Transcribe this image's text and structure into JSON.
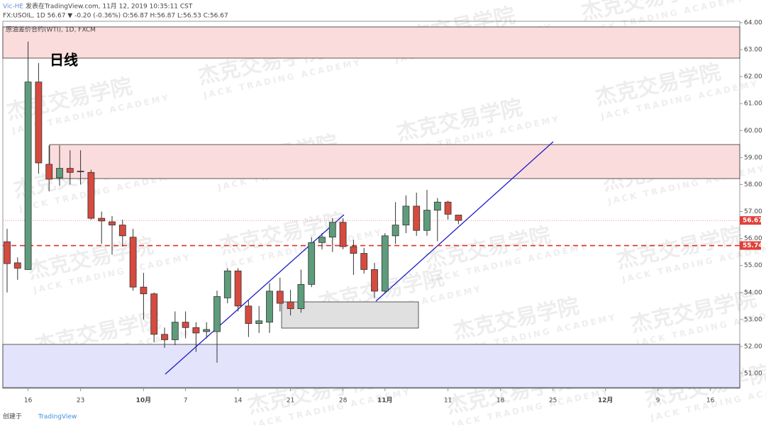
{
  "chart_data": {
    "type": "candlestick",
    "author": "Vic-HE",
    "published": "发表在TradingView.com, 11月 12, 2019 10:35:11 CST",
    "symbol_line": "FX:USOIL, 1D 56.67 ▼ -0.20 (-0.36%) O:56.87 H:56.87 L:56.53 C:56.67",
    "instrument": "原油差价合约(WTI), 1D, FXCM",
    "annotation": "日线",
    "watermark": "杰克交易学院",
    "watermark_sub": "JACK TRADING ACADEMY",
    "footer": "创建于",
    "brand": "TradingView",
    "categories": [
      null,
      null,
      "16",
      null,
      null,
      null,
      null,
      "23",
      null,
      null,
      null,
      null,
      null,
      "10月",
      null,
      null,
      null,
      "7",
      null,
      null,
      null,
      null,
      "14",
      null,
      null,
      null,
      null,
      "21",
      null,
      null,
      null,
      null,
      "28",
      null,
      null,
      null,
      "11月",
      null,
      null,
      null,
      null,
      null,
      "11",
      null,
      null,
      null,
      null,
      "18",
      null,
      null,
      null,
      null,
      "25",
      null,
      null,
      null,
      null,
      "12月",
      null,
      null,
      null,
      null,
      "9",
      null,
      null,
      null,
      null,
      "16",
      null,
      null
    ],
    "open": [
      55.88,
      55.1,
      54.85,
      61.8,
      58.75,
      58.25,
      58.6,
      58.5,
      58.45,
      56.75,
      56.62,
      56.5,
      56.05,
      54.2,
      53.95,
      52.45,
      52.25,
      52.9,
      52.7,
      52.55,
      52.55,
      53.8,
      54.8,
      53.5,
      52.85,
      52.9,
      54.05,
      53.65,
      53.4,
      54.3,
      55.85,
      56.05,
      56.6,
      55.7,
      55.45,
      54.85,
      54.05,
      56.1,
      56.5,
      57.2,
      56.3,
      57.05,
      57.35,
      56.87,
      null,
      null,
      null,
      null,
      null,
      null,
      null,
      null,
      null,
      null,
      null,
      null,
      null,
      null,
      null,
      null,
      null,
      null,
      null,
      null,
      null,
      null,
      null,
      null,
      null,
      null
    ],
    "high": [
      56.36,
      55.3,
      63.3,
      62.5,
      59.45,
      59.45,
      59.27,
      59.27,
      58.55,
      57.0,
      56.83,
      56.7,
      56.36,
      54.73,
      54.0,
      52.7,
      53.3,
      53.3,
      52.9,
      52.9,
      54.07,
      54.9,
      54.9,
      53.7,
      53.5,
      54.35,
      54.55,
      54.1,
      54.85,
      56.05,
      56.2,
      56.75,
      56.75,
      55.95,
      55.65,
      55.1,
      56.2,
      57.35,
      57.6,
      57.7,
      57.8,
      57.5,
      57.4,
      56.87,
      null,
      null,
      null,
      null,
      null,
      null,
      null,
      null,
      null,
      null,
      null,
      null,
      null,
      null,
      null,
      null,
      null,
      null,
      null,
      null,
      null,
      null,
      null,
      null,
      null,
      null
    ],
    "low": [
      54.0,
      54.47,
      54.85,
      58.4,
      57.75,
      57.95,
      58.0,
      58.0,
      56.7,
      55.8,
      55.4,
      55.7,
      54.07,
      53.0,
      52.15,
      51.95,
      52.05,
      52.3,
      51.8,
      52.3,
      51.4,
      53.6,
      53.3,
      52.35,
      52.5,
      52.5,
      53.3,
      53.15,
      53.25,
      54.2,
      55.6,
      55.5,
      55.6,
      54.65,
      54.7,
      53.8,
      54.0,
      55.8,
      56.2,
      56.1,
      56.1,
      55.9,
      56.7,
      56.53,
      null,
      null,
      null,
      null,
      null,
      null,
      null,
      null,
      null,
      null,
      null,
      null,
      null,
      null,
      null,
      null,
      null,
      null,
      null,
      null,
      null,
      null,
      null,
      null,
      null,
      null
    ],
    "close": [
      55.07,
      54.9,
      61.8,
      58.8,
      58.2,
      58.6,
      58.45,
      58.48,
      56.75,
      56.65,
      56.5,
      56.1,
      54.2,
      53.95,
      52.45,
      52.25,
      52.9,
      52.7,
      52.5,
      52.63,
      53.85,
      54.8,
      53.5,
      52.85,
      52.95,
      54.05,
      53.6,
      53.4,
      54.3,
      55.85,
      56.05,
      56.6,
      55.7,
      55.45,
      54.85,
      54.05,
      56.1,
      56.5,
      57.2,
      56.3,
      57.05,
      57.35,
      56.9,
      56.67,
      null,
      null,
      null,
      null,
      null,
      null,
      null,
      null,
      null,
      null,
      null,
      null,
      null,
      null,
      null,
      null,
      null,
      null,
      null,
      null,
      null,
      null,
      null,
      null,
      null,
      null
    ],
    "up_color": "#5e9c7c",
    "down_color": "#d64a3f",
    "last_price": {
      "value": 56.67,
      "label": "56.67"
    },
    "level_price": {
      "value": 55.74,
      "label": "55.74"
    },
    "ylim": [
      50.45,
      64.05
    ],
    "yticks": [
      {
        "value": 51,
        "label": "51.00"
      },
      {
        "value": 52,
        "label": "52.00"
      },
      {
        "value": 53,
        "label": "53.00"
      },
      {
        "value": 54,
        "label": "54.00"
      },
      {
        "value": 55,
        "label": "55.00"
      },
      {
        "value": 56,
        "label": "56.00"
      },
      {
        "value": 57,
        "label": "57.00"
      },
      {
        "value": 58,
        "label": "58.00"
      },
      {
        "value": 59,
        "label": "59.00"
      },
      {
        "value": 60,
        "label": "60.00"
      },
      {
        "value": 61,
        "label": "61.00"
      },
      {
        "value": 62,
        "label": "62.00"
      },
      {
        "value": 63,
        "label": "63.00"
      },
      {
        "value": 64,
        "label": "64.00"
      }
    ]
  }
}
